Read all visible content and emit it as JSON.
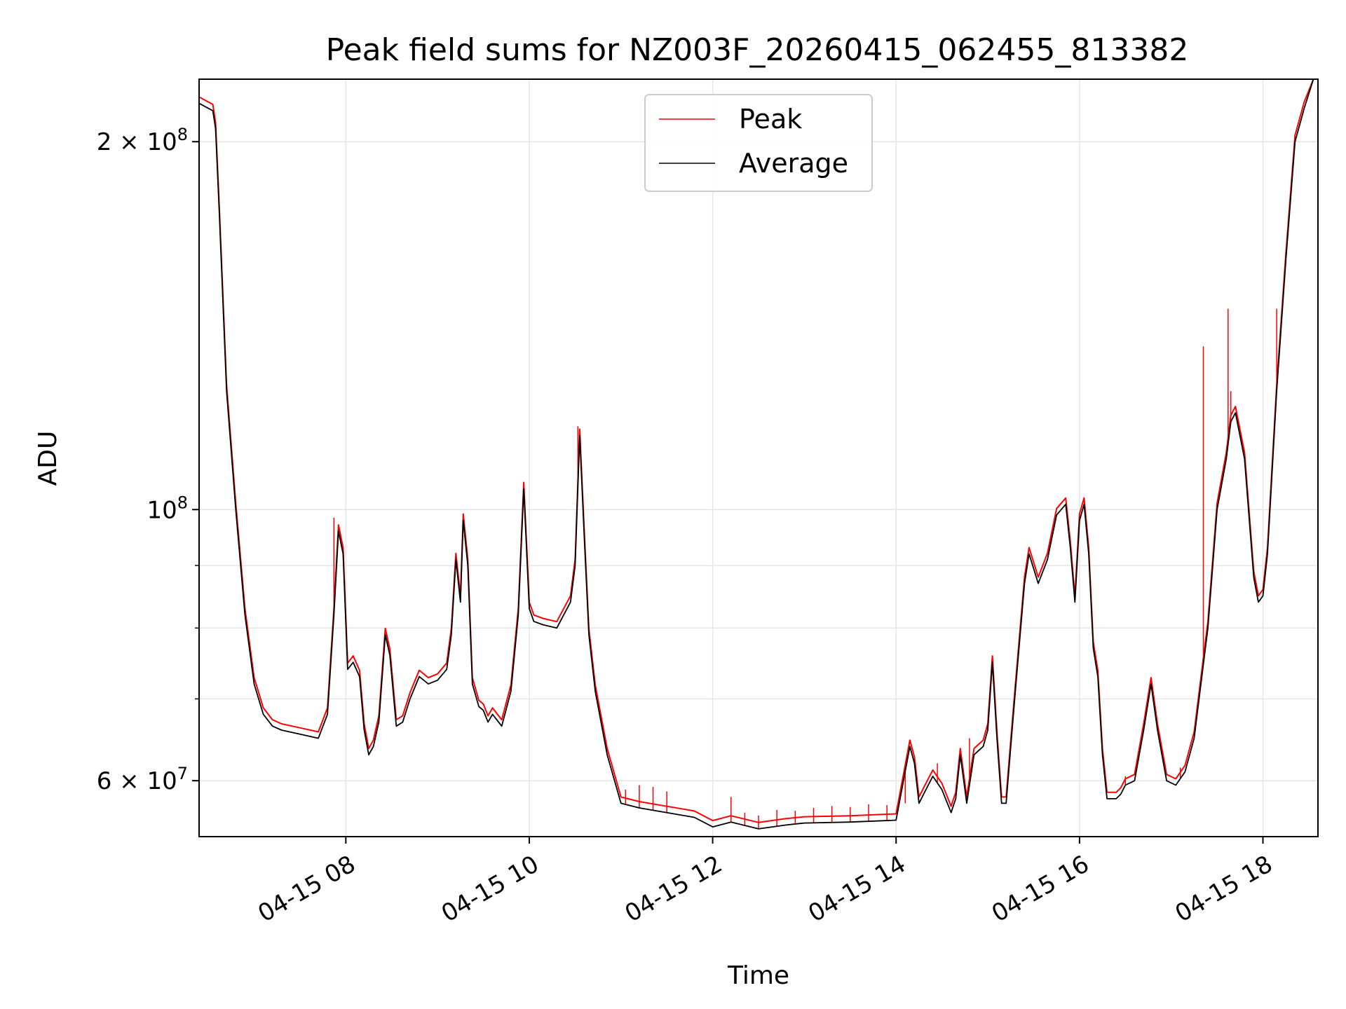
{
  "chart_data": {
    "type": "line",
    "title": "Peak field sums for NZ003F_20260415_062455_813382",
    "xlabel": "Time",
    "ylabel": "ADU",
    "yscale": "log",
    "xlim_hours": [
      6.4,
      18.6
    ],
    "ylim": [
      54000000,
      225000000
    ],
    "x_ticks": [
      {
        "hour": 8,
        "label": "04-15 08"
      },
      {
        "hour": 10,
        "label": "04-15 10"
      },
      {
        "hour": 12,
        "label": "04-15 12"
      },
      {
        "hour": 14,
        "label": "04-15 14"
      },
      {
        "hour": 16,
        "label": "04-15 16"
      },
      {
        "hour": 18,
        "label": "04-15 18"
      }
    ],
    "y_major_ticks": [
      {
        "value": 60000000,
        "mantissa": "6",
        "exponent": "7"
      },
      {
        "value": 100000000,
        "mantissa": "",
        "exponent": "8"
      },
      {
        "value": 200000000,
        "mantissa": "2",
        "exponent": "8"
      }
    ],
    "y_minor_ticks": [
      70000000,
      80000000,
      90000000
    ],
    "times_symbol": "×",
    "base_label": "10",
    "grid": true,
    "legend": {
      "position": "top-center",
      "entries": [
        {
          "name": "Peak",
          "color": "#ff0000"
        },
        {
          "name": "Average",
          "color": "#000000"
        }
      ]
    },
    "series": [
      {
        "name": "Average",
        "color": "#000000",
        "x_hours": [
          6.4,
          6.55,
          6.58,
          6.62,
          6.7,
          6.8,
          6.9,
          7.0,
          7.1,
          7.2,
          7.3,
          7.5,
          7.7,
          7.8,
          7.87,
          7.92,
          7.97,
          8.02,
          8.08,
          8.15,
          8.2,
          8.25,
          8.3,
          8.36,
          8.43,
          8.48,
          8.55,
          8.62,
          8.7,
          8.8,
          8.9,
          9.0,
          9.1,
          9.15,
          9.2,
          9.25,
          9.28,
          9.33,
          9.38,
          9.45,
          9.5,
          9.55,
          9.6,
          9.7,
          9.8,
          9.88,
          9.94,
          10.0,
          10.05,
          10.15,
          10.3,
          10.45,
          10.5,
          10.55,
          10.6,
          10.65,
          10.72,
          10.85,
          11.0,
          11.2,
          11.5,
          11.8,
          12.0,
          12.2,
          12.5,
          12.8,
          13.0,
          13.5,
          14.0,
          14.15,
          14.2,
          14.25,
          14.3,
          14.4,
          14.5,
          14.6,
          14.65,
          14.7,
          14.77,
          14.85,
          14.95,
          15.0,
          15.05,
          15.1,
          15.15,
          15.2,
          15.25,
          15.3,
          15.4,
          15.45,
          15.55,
          15.65,
          15.75,
          15.85,
          15.9,
          15.95,
          16.0,
          16.05,
          16.1,
          16.15,
          16.2,
          16.25,
          16.3,
          16.4,
          16.45,
          16.5,
          16.6,
          16.7,
          16.78,
          16.85,
          16.95,
          17.05,
          17.15,
          17.25,
          17.4,
          17.5,
          17.6,
          17.65,
          17.7,
          17.8,
          17.9,
          17.95,
          18.0,
          18.05,
          18.15,
          18.25,
          18.35,
          18.45,
          18.55,
          18.6
        ],
        "y": [
          215000000,
          212000000,
          205000000,
          175000000,
          125000000,
          100000000,
          82000000,
          72000000,
          68000000,
          66500000,
          66000000,
          65500000,
          65000000,
          68000000,
          82000000,
          96000000,
          92000000,
          74000000,
          75000000,
          73000000,
          66000000,
          63000000,
          64000000,
          67000000,
          79000000,
          76000000,
          66500000,
          67000000,
          70000000,
          73000000,
          72000000,
          72500000,
          74000000,
          79000000,
          91000000,
          84000000,
          98000000,
          90000000,
          72000000,
          69000000,
          68500000,
          67000000,
          68000000,
          66500000,
          71000000,
          82000000,
          104000000,
          83000000,
          81000000,
          80500000,
          80000000,
          84000000,
          90000000,
          115000000,
          95000000,
          79000000,
          71000000,
          63000000,
          57500000,
          57000000,
          56500000,
          56000000,
          55000000,
          55500000,
          54800000,
          55200000,
          55400000,
          55500000,
          55700000,
          64000000,
          62000000,
          57500000,
          58500000,
          60500000,
          59000000,
          56500000,
          58000000,
          63000000,
          57500000,
          63000000,
          64000000,
          66000000,
          75000000,
          65000000,
          57500000,
          57500000,
          64000000,
          71000000,
          87000000,
          92000000,
          87000000,
          91000000,
          99000000,
          101000000,
          93000000,
          84000000,
          98000000,
          101000000,
          92000000,
          77000000,
          73000000,
          63000000,
          58000000,
          58000000,
          58500000,
          59500000,
          60000000,
          66000000,
          72000000,
          66000000,
          60000000,
          59500000,
          61000000,
          65000000,
          80000000,
          100000000,
          110000000,
          118000000,
          120000000,
          110000000,
          88000000,
          84000000,
          85000000,
          92000000,
          125000000,
          160000000,
          200000000,
          213000000,
          225000000,
          225000000
        ]
      },
      {
        "name": "Peak",
        "color": "#ff0000",
        "spikes": [
          {
            "hour": 7.87,
            "value": 98500000
          },
          {
            "hour": 10.53,
            "value": 117000000
          },
          {
            "hour": 11.05,
            "value": 59000000
          },
          {
            "hour": 11.2,
            "value": 59500000
          },
          {
            "hour": 11.35,
            "value": 59300000
          },
          {
            "hour": 11.5,
            "value": 58800000
          },
          {
            "hour": 12.2,
            "value": 58200000
          },
          {
            "hour": 12.35,
            "value": 56500000
          },
          {
            "hour": 12.5,
            "value": 56200000
          },
          {
            "hour": 12.7,
            "value": 56800000
          },
          {
            "hour": 12.9,
            "value": 56700000
          },
          {
            "hour": 13.1,
            "value": 57000000
          },
          {
            "hour": 13.3,
            "value": 57200000
          },
          {
            "hour": 13.5,
            "value": 57100000
          },
          {
            "hour": 13.7,
            "value": 57400000
          },
          {
            "hour": 13.9,
            "value": 57300000
          },
          {
            "hour": 14.1,
            "value": 57500000
          },
          {
            "hour": 14.45,
            "value": 62000000
          },
          {
            "hour": 14.8,
            "value": 65000000
          },
          {
            "hour": 16.5,
            "value": 60500000
          },
          {
            "hour": 16.62,
            "value": 61000000
          },
          {
            "hour": 17.1,
            "value": 61500000
          },
          {
            "hour": 17.35,
            "value": 136000000
          },
          {
            "hour": 17.62,
            "value": 146000000
          },
          {
            "hour": 17.65,
            "value": 125000000
          },
          {
            "hour": 18.15,
            "value": 146000000
          }
        ]
      }
    ]
  }
}
